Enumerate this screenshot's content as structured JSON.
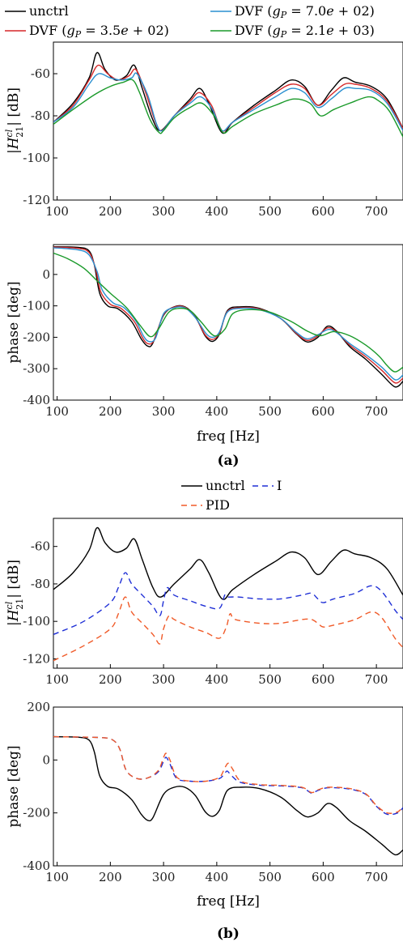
{
  "chart_data": [
    {
      "panel": "a",
      "type": "line",
      "ylabel": "|H21cl| [dB]",
      "ylim": [
        -120,
        -45
      ],
      "xlim": [
        93,
        750
      ],
      "xticks": [
        100,
        200,
        300,
        400,
        500,
        600,
        700
      ],
      "yticks": [
        -120,
        -100,
        -80,
        -60
      ],
      "grid": false,
      "legend": "top",
      "series": [
        {
          "name": "unctrl",
          "color": "#000000",
          "x": [
            93,
            130,
            160,
            175,
            190,
            210,
            230,
            245,
            260,
            280,
            295,
            320,
            350,
            368,
            385,
            410,
            430,
            470,
            510,
            540,
            565,
            590,
            615,
            638,
            660,
            690,
            720,
            750
          ],
          "y": [
            -83,
            -74,
            -62,
            -50,
            -58,
            -63,
            -61,
            -56,
            -67,
            -82,
            -87,
            -80,
            -72,
            -67,
            -74,
            -88,
            -83,
            -75,
            -68,
            -63,
            -66,
            -75,
            -68,
            -62,
            -64,
            -66,
            -72,
            -86
          ]
        },
        {
          "name": "DVF (gP = 3.5e+02)",
          "color": "#d62728",
          "x": [
            93,
            130,
            160,
            177,
            195,
            215,
            235,
            248,
            265,
            285,
            297,
            320,
            350,
            368,
            390,
            410,
            430,
            470,
            510,
            540,
            565,
            590,
            615,
            640,
            660,
            690,
            720,
            750
          ],
          "y": [
            -83,
            -75,
            -63,
            -56,
            -60,
            -63,
            -61,
            -58,
            -68,
            -83,
            -87,
            -80,
            -73,
            -69,
            -75,
            -87,
            -83,
            -76,
            -69,
            -65,
            -67,
            -75,
            -70,
            -65,
            -65,
            -67,
            -73,
            -86
          ]
        },
        {
          "name": "DVF (gP = 7.0e+02)",
          "color": "#2a8fd0",
          "x": [
            93,
            130,
            160,
            178,
            200,
            220,
            240,
            250,
            270,
            287,
            298,
            320,
            350,
            370,
            392,
            410,
            430,
            470,
            510,
            540,
            565,
            590,
            615,
            640,
            660,
            690,
            720,
            750
          ],
          "y": [
            -83,
            -76,
            -65,
            -60,
            -62,
            -63,
            -62,
            -60,
            -70,
            -84,
            -87,
            -80,
            -74,
            -71,
            -77,
            -87,
            -83,
            -77,
            -71,
            -67,
            -69,
            -76,
            -72,
            -67,
            -67,
            -68,
            -74,
            -87
          ]
        },
        {
          "name": "DVF (gP = 2.1e+03)",
          "color": "#1a9a2a",
          "x": [
            93,
            130,
            170,
            200,
            225,
            242,
            255,
            275,
            292,
            300,
            320,
            350,
            372,
            395,
            412,
            430,
            470,
            510,
            545,
            575,
            595,
            620,
            650,
            685,
            705,
            725,
            750
          ],
          "y": [
            -84,
            -77,
            -70,
            -66,
            -64,
            -63,
            -69,
            -82,
            -88,
            -87,
            -81,
            -76,
            -74,
            -80,
            -88,
            -85,
            -79,
            -75,
            -72,
            -74,
            -80,
            -77,
            -74,
            -71,
            -73,
            -78,
            -90
          ]
        }
      ]
    },
    {
      "panel": "a",
      "type": "line",
      "xlabel": "freq [Hz]",
      "ylabel": "phase [deg]",
      "ylim": [
        -400,
        95
      ],
      "xlim": [
        93,
        750
      ],
      "xticks": [
        100,
        200,
        300,
        400,
        500,
        600,
        700
      ],
      "yticks": [
        -400,
        -300,
        -200,
        -100,
        0
      ],
      "grid": false,
      "series": [
        {
          "name": "unctrl",
          "color": "#000000",
          "x": [
            93,
            140,
            160,
            170,
            180,
            195,
            215,
            240,
            258,
            270,
            280,
            300,
            320,
            340,
            360,
            378,
            392,
            405,
            420,
            445,
            480,
            520,
            550,
            570,
            590,
            608,
            625,
            650,
            680,
            710,
            735,
            750
          ],
          "y": [
            88,
            86,
            75,
            30,
            -60,
            -100,
            -110,
            -150,
            -205,
            -228,
            -218,
            -130,
            -103,
            -103,
            -135,
            -195,
            -213,
            -190,
            -115,
            -103,
            -108,
            -140,
            -190,
            -215,
            -200,
            -165,
            -180,
            -230,
            -270,
            -318,
            -358,
            -340
          ]
        },
        {
          "name": "DVF (gP = 3.5e+02)",
          "color": "#d62728",
          "x": [
            93,
            140,
            160,
            172,
            182,
            200,
            220,
            245,
            260,
            270,
            282,
            300,
            320,
            340,
            360,
            378,
            392,
            405,
            420,
            445,
            480,
            520,
            550,
            570,
            590,
            608,
            625,
            650,
            680,
            710,
            735,
            750
          ],
          "y": [
            87,
            83,
            70,
            20,
            -55,
            -95,
            -108,
            -150,
            -200,
            -220,
            -210,
            -128,
            -104,
            -104,
            -137,
            -192,
            -207,
            -187,
            -118,
            -106,
            -110,
            -140,
            -188,
            -210,
            -195,
            -170,
            -182,
            -225,
            -262,
            -305,
            -345,
            -330
          ]
        },
        {
          "name": "DVF (gP = 7.0e+02)",
          "color": "#2a8fd0",
          "x": [
            93,
            140,
            160,
            175,
            185,
            205,
            225,
            248,
            262,
            272,
            285,
            300,
            320,
            340,
            360,
            380,
            393,
            405,
            420,
            445,
            480,
            520,
            550,
            570,
            590,
            610,
            625,
            650,
            680,
            710,
            735,
            750
          ],
          "y": [
            85,
            78,
            62,
            10,
            -50,
            -90,
            -105,
            -148,
            -195,
            -213,
            -203,
            -125,
            -106,
            -106,
            -138,
            -188,
            -200,
            -183,
            -120,
            -108,
            -112,
            -140,
            -185,
            -205,
            -192,
            -175,
            -185,
            -220,
            -255,
            -295,
            -335,
            -320
          ]
        },
        {
          "name": "DVF (gP = 2.1e+03)",
          "color": "#1a9a2a",
          "x": [
            93,
            120,
            150,
            175,
            200,
            230,
            255,
            275,
            290,
            310,
            330,
            350,
            370,
            395,
            415,
            430,
            460,
            500,
            540,
            570,
            595,
            620,
            650,
            680,
            705,
            720,
            735,
            750
          ],
          "y": [
            68,
            50,
            20,
            -20,
            -60,
            -105,
            -160,
            -198,
            -175,
            -120,
            -108,
            -115,
            -150,
            -195,
            -175,
            -125,
            -112,
            -120,
            -150,
            -180,
            -195,
            -182,
            -195,
            -225,
            -260,
            -290,
            -310,
            -295
          ]
        }
      ]
    },
    {
      "panel": "b",
      "type": "line",
      "ylabel": "|H21cl| [dB]",
      "ylim": [
        -125,
        -45
      ],
      "xlim": [
        93,
        750
      ],
      "xticks": [
        100,
        200,
        300,
        400,
        500,
        600,
        700
      ],
      "yticks": [
        -120,
        -100,
        -80,
        -60
      ],
      "grid": false,
      "legend": "top",
      "series": [
        {
          "name": "unctrl",
          "color": "#000000",
          "dash": "",
          "x": [
            93,
            130,
            160,
            175,
            190,
            210,
            230,
            245,
            260,
            280,
            295,
            320,
            350,
            368,
            385,
            410,
            430,
            470,
            510,
            540,
            565,
            590,
            615,
            638,
            660,
            690,
            720,
            750
          ],
          "y": [
            -83,
            -74,
            -62,
            -50,
            -58,
            -63,
            -61,
            -56,
            -67,
            -82,
            -87,
            -80,
            -72,
            -67,
            -74,
            -88,
            -83,
            -75,
            -68,
            -63,
            -66,
            -75,
            -68,
            -62,
            -64,
            -66,
            -72,
            -86
          ]
        },
        {
          "name": "I",
          "color": "#1f2fd6",
          "dash": "7,5",
          "x": [
            93,
            150,
            200,
            215,
            228,
            240,
            260,
            280,
            293,
            300,
            307,
            320,
            350,
            380,
            405,
            415,
            420,
            440,
            480,
            520,
            560,
            578,
            590,
            600,
            620,
            660,
            690,
            710,
            735,
            750
          ],
          "y": [
            -107,
            -100,
            -90,
            -82,
            -74,
            -80,
            -86,
            -92,
            -97,
            -89,
            -82,
            -86,
            -89,
            -92,
            -93,
            -86,
            -87,
            -87,
            -88,
            -88,
            -86,
            -85,
            -88,
            -90,
            -88,
            -85,
            -81,
            -84,
            -94,
            -99
          ]
        },
        {
          "name": "PID",
          "color": "#f05a28",
          "dash": "7,5",
          "x": [
            93,
            150,
            200,
            215,
            228,
            240,
            260,
            280,
            293,
            300,
            310,
            320,
            350,
            380,
            405,
            418,
            425,
            435,
            480,
            520,
            560,
            578,
            590,
            600,
            620,
            660,
            690,
            710,
            735,
            750
          ],
          "y": [
            -121,
            -113,
            -104,
            -96,
            -87,
            -95,
            -101,
            -107,
            -112,
            -104,
            -97,
            -99,
            -103,
            -106,
            -109,
            -103,
            -96,
            -99,
            -101,
            -101,
            -99,
            -99,
            -101,
            -103,
            -102,
            -99,
            -95,
            -98,
            -109,
            -114
          ]
        }
      ]
    },
    {
      "panel": "b",
      "type": "line",
      "xlabel": "freq [Hz]",
      "ylabel": "phase [deg]",
      "ylim": [
        -400,
        200
      ],
      "xlim": [
        93,
        750
      ],
      "xticks": [
        100,
        200,
        300,
        400,
        500,
        600,
        700
      ],
      "yticks": [
        -400,
        -200,
        0,
        200
      ],
      "grid": false,
      "series": [
        {
          "name": "unctrl",
          "color": "#000000",
          "dash": "",
          "x": [
            93,
            140,
            160,
            170,
            180,
            195,
            215,
            240,
            258,
            270,
            280,
            300,
            320,
            340,
            360,
            378,
            392,
            405,
            420,
            445,
            480,
            520,
            550,
            570,
            590,
            608,
            625,
            650,
            680,
            710,
            735,
            750
          ],
          "y": [
            88,
            86,
            75,
            30,
            -60,
            -100,
            -110,
            -150,
            -205,
            -228,
            -218,
            -130,
            -103,
            -103,
            -135,
            -195,
            -213,
            -190,
            -115,
            -103,
            -108,
            -140,
            -190,
            -215,
            -200,
            -165,
            -180,
            -230,
            -270,
            -318,
            -358,
            -340
          ]
        },
        {
          "name": "I",
          "color": "#1f2fd6",
          "dash": "7,5",
          "x": [
            93,
            180,
            205,
            218,
            230,
            250,
            270,
            290,
            300,
            305,
            312,
            325,
            350,
            380,
            405,
            415,
            420,
            428,
            445,
            480,
            520,
            560,
            578,
            590,
            610,
            650,
            680,
            700,
            720,
            740,
            750
          ],
          "y": [
            88,
            85,
            75,
            40,
            -40,
            -70,
            -68,
            -45,
            -5,
            10,
            -15,
            -70,
            -80,
            -80,
            -70,
            -50,
            -42,
            -60,
            -85,
            -95,
            -98,
            -105,
            -125,
            -115,
            -105,
            -110,
            -130,
            -175,
            -205,
            -200,
            -180
          ]
        },
        {
          "name": "PID",
          "color": "#f05a28",
          "dash": "7,5",
          "x": [
            93,
            180,
            205,
            218,
            230,
            250,
            270,
            290,
            300,
            305,
            312,
            325,
            350,
            380,
            405,
            415,
            422,
            430,
            445,
            480,
            520,
            560,
            578,
            590,
            610,
            650,
            680,
            700,
            720,
            740,
            750
          ],
          "y": [
            88,
            85,
            75,
            40,
            -40,
            -70,
            -68,
            -40,
            10,
            25,
            0,
            -65,
            -80,
            -80,
            -65,
            -30,
            -12,
            -35,
            -80,
            -93,
            -96,
            -103,
            -123,
            -113,
            -103,
            -108,
            -128,
            -172,
            -200,
            -196,
            -175
          ]
        }
      ]
    }
  ],
  "panel_a": {
    "legend": [
      {
        "key": "unctrl",
        "text": "unctrl"
      },
      {
        "key": "dvf1",
        "text": "DVF (gP = 3.5e+02)"
      },
      {
        "key": "dvf2",
        "text": "DVF (gP = 7.0e+02)"
      },
      {
        "key": "dvf3",
        "text": "DVF (gP = 2.1e+03)"
      }
    ],
    "label": "(a)"
  },
  "panel_b": {
    "legend": [
      {
        "key": "unctrl",
        "text": "unctrl"
      },
      {
        "key": "I",
        "text": "I"
      },
      {
        "key": "PID",
        "text": "PID"
      }
    ],
    "label": "(b)"
  }
}
